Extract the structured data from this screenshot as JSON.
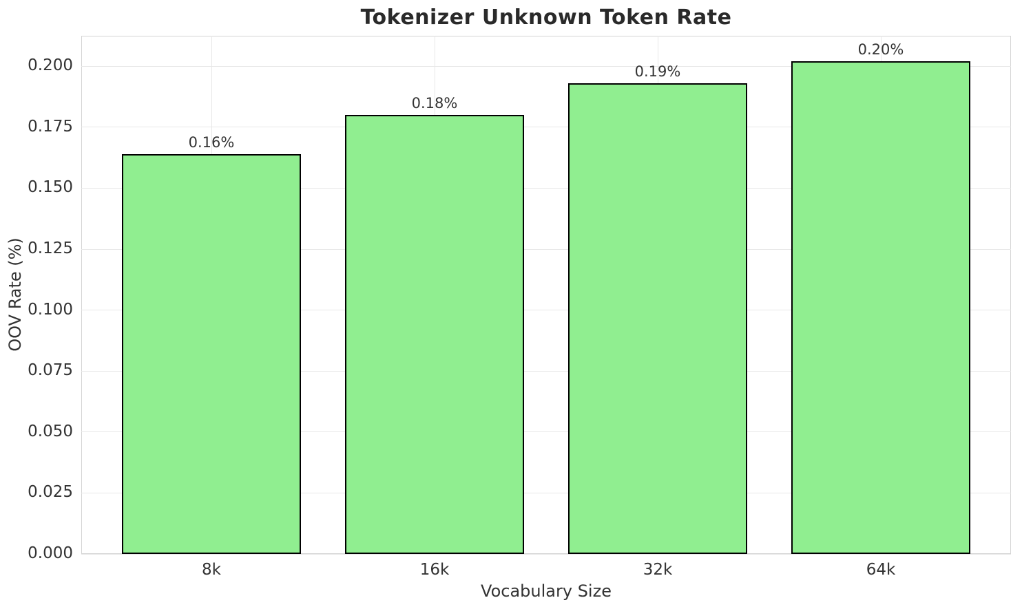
{
  "chart_data": {
    "type": "bar",
    "title": "Tokenizer Unknown Token Rate",
    "xlabel": "Vocabulary Size",
    "ylabel": "OOV Rate (%)",
    "categories": [
      "8k",
      "16k",
      "32k",
      "64k"
    ],
    "values": [
      0.164,
      0.18,
      0.193,
      0.202
    ],
    "bar_value_labels": [
      "0.16%",
      "0.18%",
      "0.19%",
      "0.20%"
    ],
    "yticks": [
      0.0,
      0.025,
      0.05,
      0.075,
      0.1,
      0.125,
      0.15,
      0.175,
      0.2
    ],
    "ytick_labels": [
      "0.000",
      "0.025",
      "0.050",
      "0.075",
      "0.100",
      "0.125",
      "0.150",
      "0.175",
      "0.200"
    ],
    "ylim": [
      0,
      0.2125
    ],
    "grid": true,
    "legend": "none",
    "colors": {
      "bar_fill": "#90EE90",
      "bar_edge": "#000000",
      "grid": "#e7e7e7",
      "spine": "#d4d4d4",
      "background": "#ffffff",
      "title_text": "#2a2a2a",
      "tick_text": "#333333"
    }
  }
}
